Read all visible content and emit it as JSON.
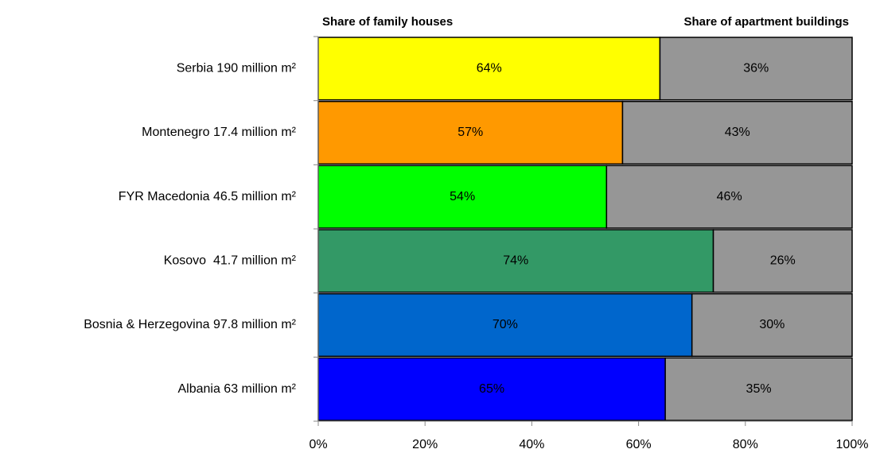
{
  "chart_data": {
    "type": "stacked-bar-horizontal",
    "categories": [
      "Serbia 190 million m²",
      "Montenegro 17.4 million m²",
      "FYR Macedonia 46.5 million m²",
      "Kosovo  41.7 million m²",
      "Bosnia & Herzegovina 97.8 million m²",
      "Albania 63 million m²"
    ],
    "series": [
      {
        "name": "Share of family houses",
        "colors": [
          "#ffff00",
          "#ff9900",
          "#00ff00",
          "#339966",
          "#0066cc",
          "#0000ff"
        ],
        "values": [
          64,
          57,
          54,
          74,
          70,
          65
        ],
        "value_labels": [
          "64%",
          "57%",
          "54%",
          "74%",
          "70%",
          "65%"
        ]
      },
      {
        "name": "Share of apartment buildings",
        "color": "#969696",
        "values": [
          36,
          43,
          46,
          26,
          30,
          35
        ],
        "value_labels": [
          "36%",
          "43%",
          "46%",
          "26%",
          "30%",
          "35%"
        ]
      }
    ],
    "xlim": [
      0,
      100
    ],
    "xticks": [
      {
        "value": 0,
        "label": "0%"
      },
      {
        "value": 20,
        "label": "20%"
      },
      {
        "value": 40,
        "label": "40%"
      },
      {
        "value": 60,
        "label": "60%"
      },
      {
        "value": 80,
        "label": "80%"
      },
      {
        "value": 100,
        "label": "100%"
      }
    ]
  }
}
